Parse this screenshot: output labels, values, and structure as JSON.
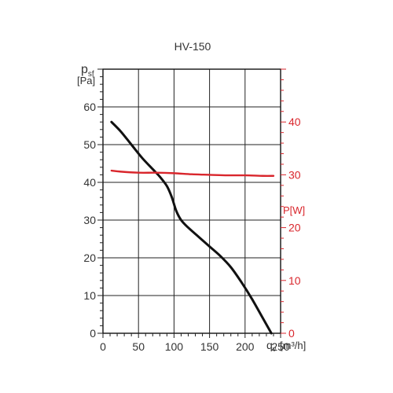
{
  "chart_data": {
    "type": "line",
    "title": "HV-150",
    "x_axis": {
      "label": "qv",
      "label_main": "q",
      "label_sub": "v",
      "unit": "[m³/h]",
      "range": [
        0,
        250
      ],
      "ticks": [
        0,
        50,
        100,
        150,
        200,
        250
      ]
    },
    "y_axis_left": {
      "label": "psf",
      "label_main": "p",
      "label_sub": "sf",
      "unit": "[Pa]",
      "range": [
        0,
        70
      ],
      "ticks": [
        0,
        10,
        20,
        30,
        40,
        50,
        60
      ]
    },
    "y_axis_right": {
      "label": "P[W]",
      "range": [
        0,
        50
      ],
      "ticks": [
        0,
        10,
        20,
        30,
        40
      ]
    },
    "grid": true,
    "series": [
      {
        "axis": "left",
        "color": "#111111",
        "x": [
          12,
          25,
          40,
          55,
          70,
          80,
          90,
          97,
          103,
          110,
          120,
          135,
          150,
          165,
          180,
          195,
          210,
          225,
          237
        ],
        "y": [
          56,
          53.5,
          50,
          46.5,
          43.5,
          41.5,
          39,
          36,
          32.5,
          30,
          28,
          25.5,
          23,
          20.5,
          17.5,
          13.5,
          9,
          4,
          0
        ]
      },
      {
        "axis": "right",
        "color": "#d9262c",
        "x": [
          12,
          25,
          50,
          75,
          100,
          125,
          150,
          175,
          200,
          225,
          240
        ],
        "y": [
          30.8,
          30.6,
          30.4,
          30.4,
          30.3,
          30.1,
          30.0,
          29.9,
          29.9,
          29.8,
          29.8
        ]
      }
    ]
  }
}
